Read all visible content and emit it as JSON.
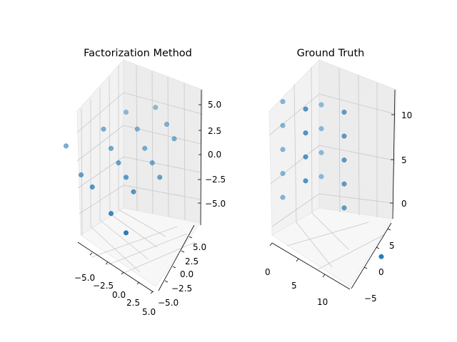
{
  "chart_data": [
    {
      "type": "scatter",
      "title": "Factorization Method",
      "color": "#1f77b4",
      "x_ticks": [
        "−5.0",
        "−2.5",
        "0.0",
        "2.5",
        "5.0"
      ],
      "y_ticks": [
        "5.0",
        "2.5",
        "0.0",
        "−2.5",
        "−5.0"
      ],
      "z_ticks": [
        "5.0",
        "2.5",
        "0.0",
        "−2.5",
        "−5.0"
      ],
      "points": [
        {
          "x": -6.0,
          "y": -3.5,
          "z": 0.5
        },
        {
          "x": -4.0,
          "y": -3.5,
          "z": -1.5
        },
        {
          "x": -2.5,
          "y": -3.5,
          "z": -2.0
        },
        {
          "x": 0.0,
          "y": -3.5,
          "z": -3.5
        },
        {
          "x": 2.0,
          "y": -3.5,
          "z": -4.5
        },
        {
          "x": -3.0,
          "y": 0.0,
          "z": 2.0
        },
        {
          "x": -2.0,
          "y": 0.0,
          "z": 0.5
        },
        {
          "x": -1.0,
          "y": 0.0,
          "z": -0.5
        },
        {
          "x": 0.0,
          "y": 0.0,
          "z": -1.5
        },
        {
          "x": 1.0,
          "y": 0.0,
          "z": -2.5
        },
        {
          "x": -2.0,
          "y": 3.5,
          "z": 2.5
        },
        {
          "x": -0.5,
          "y": 3.5,
          "z": 1.5
        },
        {
          "x": 0.5,
          "y": 3.5,
          "z": 0.0
        },
        {
          "x": 1.5,
          "y": 3.5,
          "z": -1.0
        },
        {
          "x": 2.5,
          "y": 3.5,
          "z": -2.0
        },
        {
          "x": 0.5,
          "y": 6.0,
          "z": 3.0
        },
        {
          "x": 2.0,
          "y": 6.0,
          "z": 2.0
        },
        {
          "x": 3.0,
          "y": 6.0,
          "z": 1.0
        }
      ]
    },
    {
      "type": "scatter",
      "title": "Ground Truth",
      "color": "#1f77b4",
      "x_ticks": [
        "0",
        "5",
        "10"
      ],
      "y_ticks": [
        "5",
        "0",
        "−5"
      ],
      "z_ticks": [
        "10",
        "5",
        "0"
      ],
      "points": [
        {
          "x": 0,
          "y": 0,
          "z": 12
        },
        {
          "x": 0,
          "y": 0,
          "z": 9
        },
        {
          "x": 0,
          "y": 0,
          "z": 6
        },
        {
          "x": 0,
          "y": 0,
          "z": 3
        },
        {
          "x": 0,
          "y": 0,
          "z": 0
        },
        {
          "x": 4,
          "y": 0,
          "z": 12
        },
        {
          "x": 4,
          "y": 0,
          "z": 9
        },
        {
          "x": 4,
          "y": 0,
          "z": 6
        },
        {
          "x": 4,
          "y": 0,
          "z": 3
        },
        {
          "x": 4,
          "y": 5,
          "z": 12
        },
        {
          "x": 4,
          "y": 5,
          "z": 9
        },
        {
          "x": 4,
          "y": 5,
          "z": 6
        },
        {
          "x": 4,
          "y": 5,
          "z": 3
        },
        {
          "x": 8,
          "y": 5,
          "z": 12
        },
        {
          "x": 8,
          "y": 5,
          "z": 9
        },
        {
          "x": 8,
          "y": 5,
          "z": 6
        },
        {
          "x": 8,
          "y": 5,
          "z": 3
        },
        {
          "x": 8,
          "y": 5,
          "z": 0
        },
        {
          "x": 12,
          "y": 5,
          "z": -5
        }
      ]
    }
  ]
}
